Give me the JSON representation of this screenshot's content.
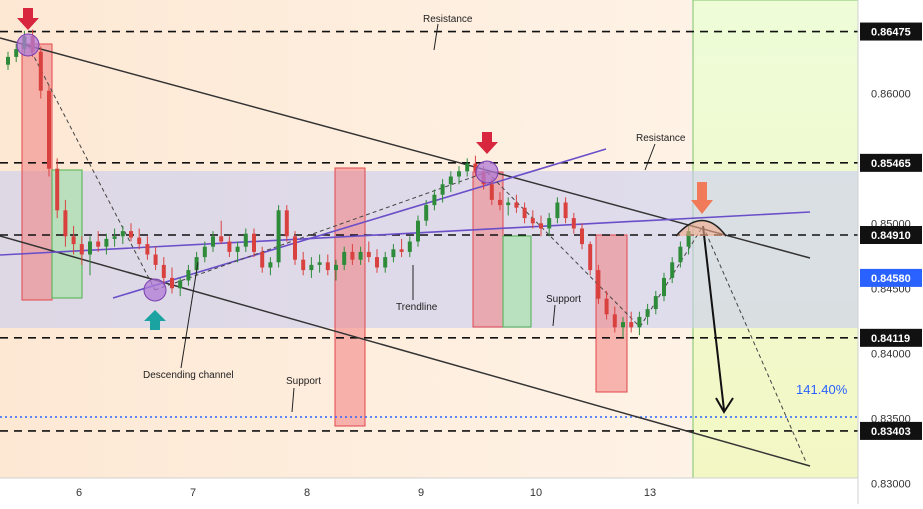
{
  "chart_data": {
    "type": "candlestick",
    "y_axis": {
      "ticks": [
        "0.86000",
        "0.85500",
        "0.85000",
        "0.84500",
        "0.84000",
        "0.83500",
        "0.83000"
      ],
      "tick_values": [
        0.86,
        0.855,
        0.85,
        0.845,
        0.84,
        0.835,
        0.83
      ],
      "range": [
        0.8285,
        0.8686
      ]
    },
    "x_axis": {
      "ticks": [
        "6",
        "7",
        "8",
        "9",
        "10",
        "13"
      ]
    },
    "levels": [
      {
        "value": 0.86475,
        "label": "0.86475",
        "color": "#111111"
      },
      {
        "value": 0.85465,
        "label": "0.85465",
        "color": "#111111"
      },
      {
        "value": 0.8491,
        "label": "0.84910",
        "color": "#111111"
      },
      {
        "value": 0.8458,
        "label": "0.84580",
        "color": "#2962ff"
      },
      {
        "value": 0.84119,
        "label": "0.84119",
        "color": "#111111"
      },
      {
        "value": 0.83403,
        "label": "0.83403",
        "color": "#111111"
      }
    ],
    "fib_level": {
      "value": 0.8351,
      "label": "141.40%",
      "color": "#2962ff"
    },
    "annotations": {
      "resistance_top": "Resistance",
      "resistance_mid": "Resistance",
      "support_low": "Support",
      "support_mid": "Support",
      "trendline": "Trendline",
      "descending_channel": "Descending channel"
    },
    "series": [
      {
        "values": [
          [
            0.8622,
            0.8632,
            0.8618,
            0.8628
          ],
          [
            0.8628,
            0.8638,
            0.8624,
            0.8634
          ],
          [
            0.8634,
            0.8648,
            0.863,
            0.8644
          ],
          [
            0.8644,
            0.8649,
            0.8628,
            0.8632
          ],
          [
            0.8632,
            0.8636,
            0.8596,
            0.8602
          ],
          [
            0.8602,
            0.8606,
            0.8536,
            0.8542
          ],
          [
            0.8542,
            0.855,
            0.8504,
            0.851
          ],
          [
            0.851,
            0.8518,
            0.8482,
            0.849
          ],
          [
            0.849,
            0.8498,
            0.8476,
            0.8484
          ],
          [
            0.8484,
            0.849,
            0.8468,
            0.8476
          ],
          [
            0.8476,
            0.849,
            0.846,
            0.8486
          ],
          [
            0.8486,
            0.8494,
            0.8478,
            0.8482
          ],
          [
            0.8482,
            0.8492,
            0.8476,
            0.8488
          ],
          [
            0.8488,
            0.8496,
            0.8482,
            0.849
          ],
          [
            0.849,
            0.8498,
            0.8484,
            0.8494
          ],
          [
            0.8494,
            0.85,
            0.8486,
            0.8489
          ],
          [
            0.8489,
            0.8496,
            0.848,
            0.8484
          ],
          [
            0.8484,
            0.849,
            0.8472,
            0.8476
          ],
          [
            0.8476,
            0.8482,
            0.8464,
            0.8468
          ],
          [
            0.8468,
            0.8474,
            0.8452,
            0.8458
          ],
          [
            0.8458,
            0.8466,
            0.8446,
            0.845
          ],
          [
            0.845,
            0.8458,
            0.8444,
            0.8456
          ],
          [
            0.8456,
            0.8468,
            0.8452,
            0.8464
          ],
          [
            0.8464,
            0.8478,
            0.846,
            0.8474
          ],
          [
            0.8474,
            0.8486,
            0.847,
            0.8482
          ],
          [
            0.8482,
            0.8494,
            0.8478,
            0.849
          ],
          [
            0.849,
            0.8502,
            0.8484,
            0.8486
          ],
          [
            0.8486,
            0.849,
            0.8474,
            0.8478
          ],
          [
            0.8478,
            0.8486,
            0.847,
            0.8482
          ],
          [
            0.8482,
            0.8496,
            0.8478,
            0.8492
          ],
          [
            0.8492,
            0.8496,
            0.8474,
            0.8478
          ],
          [
            0.8478,
            0.8482,
            0.8462,
            0.8466
          ],
          [
            0.8466,
            0.8474,
            0.846,
            0.847
          ],
          [
            0.847,
            0.8514,
            0.8466,
            0.851
          ],
          [
            0.851,
            0.8514,
            0.8486,
            0.849
          ],
          [
            0.849,
            0.8494,
            0.8468,
            0.8472
          ],
          [
            0.8472,
            0.8478,
            0.846,
            0.8464
          ],
          [
            0.8464,
            0.8474,
            0.8458,
            0.8468
          ],
          [
            0.8468,
            0.8476,
            0.8462,
            0.847
          ],
          [
            0.847,
            0.8476,
            0.846,
            0.8464
          ],
          [
            0.8464,
            0.8472,
            0.8456,
            0.8468
          ],
          [
            0.8468,
            0.8482,
            0.8464,
            0.8478
          ],
          [
            0.8478,
            0.8484,
            0.8468,
            0.8472
          ],
          [
            0.8472,
            0.8482,
            0.8468,
            0.8478
          ],
          [
            0.8478,
            0.8486,
            0.847,
            0.8474
          ],
          [
            0.8474,
            0.848,
            0.8462,
            0.8466
          ],
          [
            0.8466,
            0.8478,
            0.8462,
            0.8474
          ],
          [
            0.8474,
            0.8484,
            0.847,
            0.848
          ],
          [
            0.848,
            0.8488,
            0.8474,
            0.8478
          ],
          [
            0.8478,
            0.849,
            0.8474,
            0.8486
          ],
          [
            0.8486,
            0.8506,
            0.8482,
            0.8502
          ],
          [
            0.8502,
            0.8518,
            0.8498,
            0.8514
          ],
          [
            0.8514,
            0.8526,
            0.851,
            0.8522
          ],
          [
            0.8522,
            0.8534,
            0.8516,
            0.853
          ],
          [
            0.853,
            0.854,
            0.8524,
            0.8536
          ],
          [
            0.8536,
            0.8544,
            0.853,
            0.854
          ],
          [
            0.854,
            0.855,
            0.8536,
            0.8546
          ],
          [
            0.8546,
            0.8552,
            0.8536,
            0.854
          ],
          [
            0.854,
            0.8544,
            0.8526,
            0.853
          ],
          [
            0.853,
            0.8534,
            0.8514,
            0.8518
          ],
          [
            0.8518,
            0.8524,
            0.851,
            0.8514
          ],
          [
            0.8514,
            0.852,
            0.8506,
            0.8516
          ],
          [
            0.8516,
            0.8522,
            0.8508,
            0.8512
          ],
          [
            0.8512,
            0.8516,
            0.85,
            0.8504
          ],
          [
            0.8504,
            0.851,
            0.8496,
            0.85
          ],
          [
            0.85,
            0.8506,
            0.849,
            0.8496
          ],
          [
            0.8496,
            0.8508,
            0.849,
            0.8504
          ],
          [
            0.8504,
            0.852,
            0.85,
            0.8516
          ],
          [
            0.8516,
            0.852,
            0.85,
            0.8504
          ],
          [
            0.8504,
            0.8508,
            0.8492,
            0.8496
          ],
          [
            0.8496,
            0.85,
            0.848,
            0.8484
          ],
          [
            0.8484,
            0.8486,
            0.846,
            0.8464
          ],
          [
            0.8464,
            0.8468,
            0.8438,
            0.8442
          ],
          [
            0.8442,
            0.8448,
            0.8426,
            0.843
          ],
          [
            0.843,
            0.8436,
            0.8416,
            0.842
          ],
          [
            0.842,
            0.8428,
            0.8412,
            0.8424
          ],
          [
            0.8424,
            0.8432,
            0.8416,
            0.842
          ],
          [
            0.842,
            0.8432,
            0.8414,
            0.8428
          ],
          [
            0.8428,
            0.8438,
            0.8422,
            0.8434
          ],
          [
            0.8434,
            0.8448,
            0.843,
            0.8444
          ],
          [
            0.8444,
            0.8462,
            0.844,
            0.8458
          ],
          [
            0.8458,
            0.8474,
            0.8454,
            0.847
          ],
          [
            0.847,
            0.8486,
            0.8466,
            0.8482
          ],
          [
            0.8482,
            0.8498,
            0.8476,
            0.8494
          ]
        ]
      }
    ]
  }
}
